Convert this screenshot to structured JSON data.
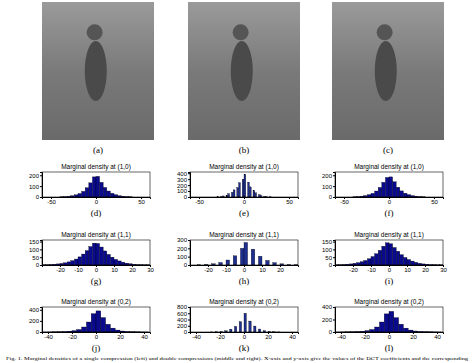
{
  "images": [
    {
      "label": "(a)"
    },
    {
      "label": "(b)"
    },
    {
      "label": "(c)"
    }
  ],
  "caption": "Fig. 1. Marginal densities of a single compression (left) and double compressions (middle and right). X-axis and y-axis give the values of the DCT coefficients and the corresponding",
  "chart_data": [
    {
      "type": "histogram",
      "title": "Marginal density at (1,0)",
      "label": "(d)",
      "color": "#0a0a8c",
      "bins": [
        -40,
        -36,
        -32,
        -28,
        -24,
        -20,
        -16,
        -12,
        -8,
        -4,
        0,
        4,
        8,
        12,
        16,
        20,
        24,
        28,
        32,
        36,
        40
      ],
      "counts": [
        2,
        4,
        7,
        12,
        20,
        32,
        52,
        85,
        130,
        185,
        190,
        135,
        88,
        55,
        34,
        21,
        12,
        7,
        4,
        2
      ],
      "xlim": [
        -60,
        60
      ],
      "xticks": [
        -50,
        0,
        50
      ],
      "ylim": [
        0,
        230
      ],
      "yticks": [
        0,
        100,
        200
      ]
    },
    {
      "type": "histogram",
      "title": "Marginal density at (1,0)",
      "label": "(e)",
      "color": "#1f2f8f",
      "bins": [
        -30,
        -28,
        -26,
        -24,
        -22,
        -20,
        -18,
        -16,
        -14,
        -12,
        -10,
        -8,
        -6,
        -4,
        -2,
        0,
        2,
        4,
        6,
        8,
        10,
        12,
        14,
        16,
        18,
        20,
        22,
        24,
        26,
        28,
        30
      ],
      "counts": [
        5,
        0,
        10,
        18,
        0,
        30,
        55,
        0,
        80,
        120,
        0,
        160,
        240,
        0,
        300,
        380,
        0,
        250,
        170,
        0,
        110,
        70,
        0,
        40,
        22,
        0,
        12,
        6,
        0,
        3
      ],
      "xlim": [
        -60,
        60
      ],
      "xticks": [
        -50,
        0,
        50
      ],
      "ylim": [
        0,
        420
      ],
      "yticks": [
        0,
        100,
        200,
        300,
        400
      ]
    },
    {
      "type": "histogram",
      "title": "Marginal density at (1,0)",
      "label": "(f)",
      "color": "#0a0a8c",
      "bins": [
        -40,
        -36,
        -32,
        -28,
        -24,
        -20,
        -16,
        -12,
        -8,
        -4,
        0,
        4,
        8,
        12,
        16,
        20,
        24,
        28,
        32,
        36,
        40
      ],
      "counts": [
        2,
        4,
        8,
        13,
        22,
        34,
        55,
        88,
        135,
        180,
        185,
        140,
        90,
        56,
        35,
        22,
        13,
        8,
        4,
        2
      ],
      "xlim": [
        -60,
        60
      ],
      "xticks": [
        -50,
        0,
        50
      ],
      "ylim": [
        0,
        230
      ],
      "yticks": [
        0,
        100,
        200
      ]
    },
    {
      "type": "histogram",
      "title": "Marginal density at (1,1)",
      "label": "(g)",
      "color": "#0a0a8c",
      "bins": [
        -30,
        -28,
        -26,
        -24,
        -22,
        -20,
        -18,
        -16,
        -14,
        -12,
        -10,
        -8,
        -6,
        -4,
        -2,
        0,
        2,
        4,
        6,
        8,
        10,
        12,
        14,
        16,
        18,
        20,
        22,
        24,
        26,
        28,
        30
      ],
      "counts": [
        1,
        2,
        3,
        5,
        7,
        10,
        14,
        20,
        28,
        38,
        52,
        70,
        92,
        118,
        140,
        138,
        115,
        90,
        68,
        50,
        36,
        26,
        18,
        12,
        8,
        5,
        3,
        2,
        1,
        1
      ],
      "xlim": [
        -30,
        30
      ],
      "xticks": [
        -20,
        -10,
        0,
        10,
        20,
        30
      ],
      "ylim": [
        0,
        160
      ],
      "yticks": [
        0,
        50,
        100,
        150
      ]
    },
    {
      "type": "histogram",
      "title": "Marginal density at (1,1)",
      "label": "(h)",
      "color": "#1f2f8f",
      "bins": [
        -30,
        -28,
        -26,
        -24,
        -22,
        -20,
        -18,
        -16,
        -14,
        -12,
        -10,
        -8,
        -6,
        -4,
        -2,
        0,
        2,
        4,
        6,
        8,
        10,
        12,
        14,
        16,
        18,
        20,
        22,
        24,
        26,
        28,
        30
      ],
      "counts": [
        0,
        0,
        2,
        0,
        6,
        0,
        15,
        0,
        30,
        0,
        60,
        0,
        110,
        0,
        200,
        270,
        0,
        190,
        0,
        105,
        0,
        55,
        0,
        28,
        0,
        14,
        0,
        5,
        0,
        2
      ],
      "xlim": [
        -30,
        30
      ],
      "xticks": [
        -20,
        -10,
        0,
        10,
        20
      ],
      "ylim": [
        0,
        300
      ],
      "yticks": [
        0,
        100,
        200,
        300
      ]
    },
    {
      "type": "histogram",
      "title": "Marginal density at (1,1)",
      "label": "(i)",
      "color": "#0a0a8c",
      "bins": [
        -30,
        -28,
        -26,
        -24,
        -22,
        -20,
        -18,
        -16,
        -14,
        -12,
        -10,
        -8,
        -6,
        -4,
        -2,
        0,
        2,
        4,
        6,
        8,
        10,
        12,
        14,
        16,
        18,
        20,
        22,
        24,
        26,
        28,
        30
      ],
      "counts": [
        1,
        2,
        3,
        5,
        7,
        11,
        15,
        21,
        29,
        40,
        54,
        72,
        94,
        120,
        142,
        136,
        112,
        88,
        66,
        48,
        35,
        25,
        17,
        11,
        7,
        5,
        3,
        2,
        1,
        1
      ],
      "xlim": [
        -30,
        30
      ],
      "xticks": [
        -20,
        -10,
        0,
        10,
        20,
        30
      ],
      "ylim": [
        0,
        160
      ],
      "yticks": [
        0,
        50,
        100,
        150
      ]
    },
    {
      "type": "histogram",
      "title": "Marginal density at (0,2)",
      "label": "(j)",
      "color": "#0a0a8c",
      "bins": [
        -44,
        -40,
        -36,
        -32,
        -28,
        -24,
        -20,
        -16,
        -12,
        -8,
        -4,
        0,
        4,
        8,
        12,
        16,
        20,
        24,
        28,
        32,
        36,
        40,
        44
      ],
      "counts": [
        1,
        2,
        3,
        5,
        9,
        15,
        25,
        45,
        90,
        180,
        330,
        380,
        260,
        140,
        70,
        35,
        18,
        10,
        6,
        3,
        2,
        1
      ],
      "xlim": [
        -45,
        45
      ],
      "xticks": [
        -40,
        -20,
        0,
        20,
        40
      ],
      "ylim": [
        0,
        450
      ],
      "yticks": [
        0,
        200,
        400
      ]
    },
    {
      "type": "histogram",
      "title": "Marginal density at (0,2)",
      "label": "(k)",
      "color": "#1f2f8f",
      "bins": [
        -30,
        -28,
        -26,
        -24,
        -22,
        -20,
        -18,
        -16,
        -14,
        -12,
        -10,
        -8,
        -6,
        -4,
        -2,
        0,
        2,
        4,
        6,
        8,
        10,
        12,
        14,
        16,
        18,
        20,
        22,
        24,
        26,
        28,
        30
      ],
      "counts": [
        0,
        3,
        0,
        8,
        0,
        18,
        0,
        40,
        0,
        90,
        0,
        180,
        0,
        330,
        0,
        600,
        0,
        350,
        0,
        190,
        0,
        95,
        0,
        42,
        0,
        20,
        0,
        8,
        0,
        3
      ],
      "xlim": [
        -45,
        45
      ],
      "xticks": [
        -40,
        -20,
        0,
        20,
        40
      ],
      "ylim": [
        0,
        800
      ],
      "yticks": [
        0,
        200,
        400,
        600,
        800
      ]
    },
    {
      "type": "histogram",
      "title": "Marginal density at (0,2)",
      "label": "(l)",
      "color": "#0a0a8c",
      "bins": [
        -44,
        -40,
        -36,
        -32,
        -28,
        -24,
        -20,
        -16,
        -12,
        -8,
        -4,
        0,
        4,
        8,
        12,
        16,
        20,
        24,
        28,
        32,
        36,
        40,
        44
      ],
      "counts": [
        1,
        2,
        3,
        5,
        8,
        13,
        22,
        40,
        80,
        160,
        290,
        330,
        230,
        125,
        62,
        31,
        16,
        9,
        5,
        3,
        2,
        1
      ],
      "xlim": [
        -45,
        45
      ],
      "xticks": [
        -40,
        -20,
        0,
        20,
        40
      ],
      "ylim": [
        0,
        400
      ],
      "yticks": [
        0,
        200,
        400
      ]
    }
  ]
}
